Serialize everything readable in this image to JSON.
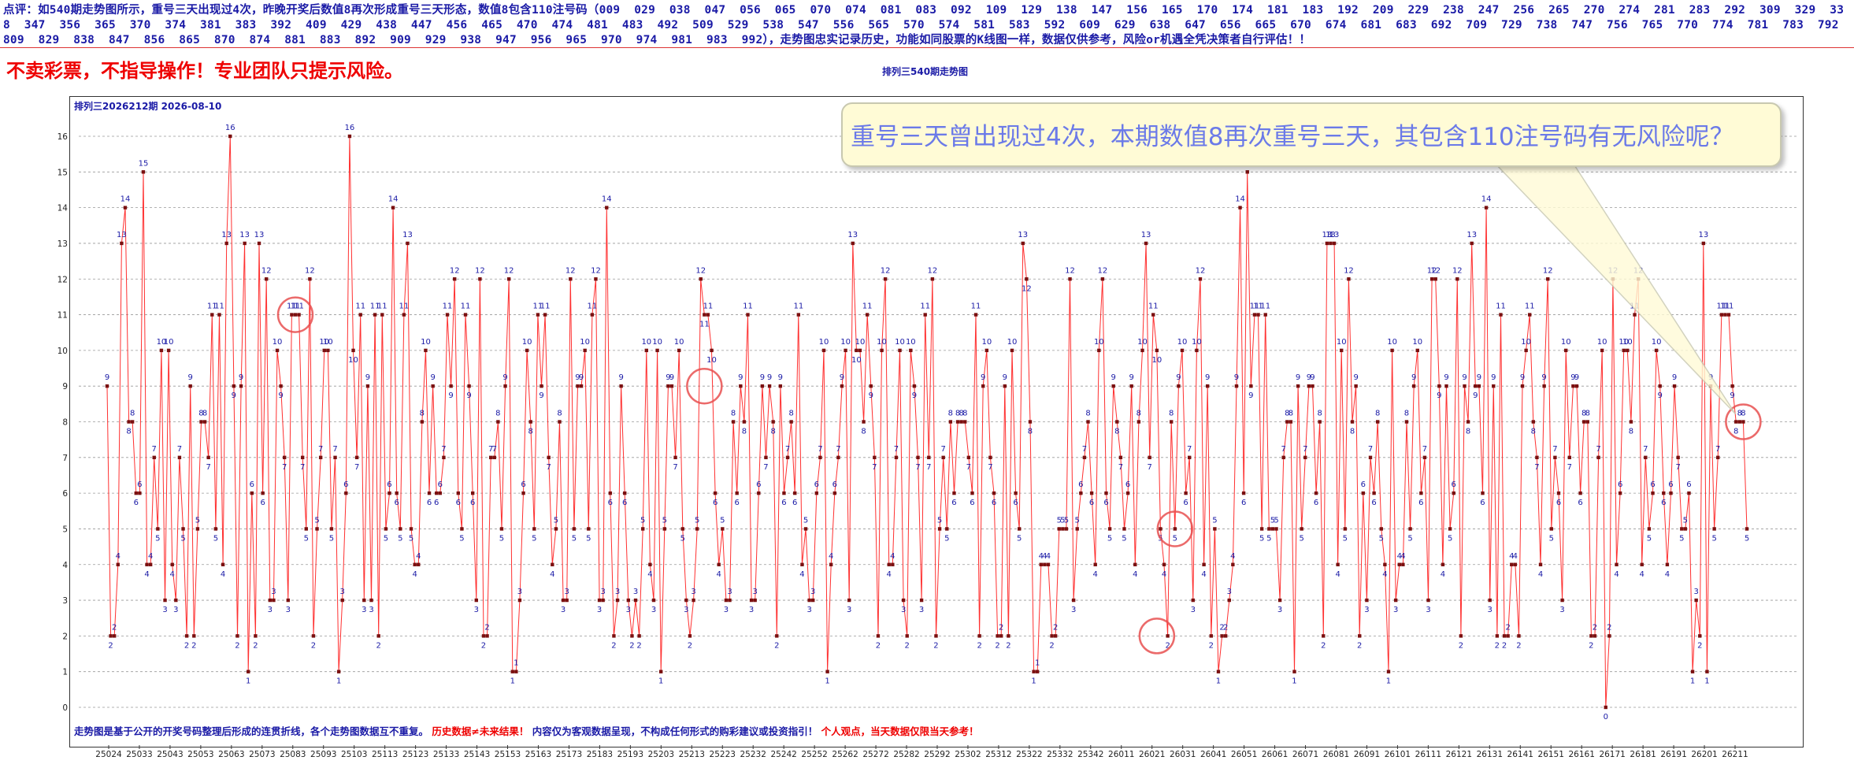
{
  "header": {
    "commentary": "点评：如540期走势图所示，重号三天出现过4次，昨晚开奖后数值8再次形成重号三天形态，数值8包含110注号码（009  029  038  047  056  065  070  074  081  083  092  109  129  138  147  156  165  170  174  181  183  192  209  229  238  247  256  265  270  274  281  283  292  309  329  338  347  356  365  370  374  381  383  392  409  429  438  447  456  465  470  474  481  483  492  509  529  538  547  556  565  570  574  581  583  592  609  629  638  647  656  665  670  674  681  683  692  709  729  738  747  756  765  770  774  781  783  792  809  829  838  847  856  865  870  874  881  883  892  909  929  938  947  956  965  970  974  981  983  992），走势图忠实记录历史，功能如同股票的K线图一样，数据仅供参考，风险or机遇全凭决策者自行评估！！"
  },
  "disclaimer": "不卖彩票，不指导操作！专业团队只提示风险。",
  "page_title": "排列三540期走势图",
  "period_label": "排列三2026212期  2026-08-10",
  "callout": "重号三天曾出现过4次，本期数值8再次重号三天，其包含110注号码有无风险呢？",
  "footer": {
    "part1": "走势图是基于公开的开奖号码整理后形成的连贯折线，各个走势图数据互不重复。",
    "part2": "历史数据≠未来结果！",
    "part3": "内容仅为客观数据呈现，不构成任何形式的购彩建议或投资指引！",
    "part4": "个人观点，当天数据仅限当天参考！"
  },
  "colors": {
    "line": "#ff3030",
    "marker": "#7a1010",
    "label": "#1a1aa6",
    "highlight": "#e85050",
    "grid": "#999999"
  },
  "chart_data": {
    "type": "line",
    "title": "排列三540期走势图",
    "ylim": [
      0,
      16
    ],
    "yticks": [
      0,
      1,
      2,
      3,
      4,
      5,
      6,
      7,
      8,
      9,
      10,
      11,
      12,
      13,
      14,
      15,
      16
    ],
    "grid": true,
    "xticks": [
      "25024",
      "25033",
      "25043",
      "25053",
      "25063",
      "25073",
      "25083",
      "25093",
      "25103",
      "25113",
      "25123",
      "25133",
      "25143",
      "25153",
      "25163",
      "25173",
      "25183",
      "25193",
      "25203",
      "25213",
      "25223",
      "25232",
      "25242",
      "25252",
      "25262",
      "25272",
      "25282",
      "25292",
      "25302",
      "25312",
      "25322",
      "25332",
      "25342",
      "26011",
      "26021",
      "26031",
      "26041",
      "26051",
      "26061",
      "26071",
      "26081",
      "26091",
      "26101",
      "26111",
      "26121",
      "26131",
      "26141",
      "26151",
      "26161",
      "26171",
      "26181",
      "26191",
      "26201",
      "26211"
    ],
    "values": [
      9,
      2,
      2,
      4,
      13,
      14,
      8,
      8,
      6,
      6,
      15,
      4,
      4,
      7,
      5,
      10,
      3,
      10,
      4,
      3,
      7,
      5,
      2,
      9,
      2,
      5,
      8,
      8,
      7,
      11,
      5,
      11,
      4,
      13,
      16,
      9,
      2,
      9,
      13,
      1,
      6,
      2,
      13,
      6,
      12,
      3,
      3,
      10,
      9,
      7,
      3,
      11,
      11,
      11,
      7,
      5,
      12,
      2,
      5,
      7,
      10,
      10,
      5,
      7,
      1,
      3,
      6,
      16,
      10,
      7,
      11,
      3,
      9,
      3,
      11,
      2,
      11,
      5,
      6,
      14,
      6,
      5,
      11,
      13,
      5,
      4,
      4,
      8,
      10,
      6,
      9,
      6,
      6,
      7,
      11,
      9,
      12,
      6,
      5,
      11,
      9,
      6,
      3,
      12,
      2,
      2,
      7,
      7,
      8,
      5,
      9,
      12,
      1,
      1,
      3,
      6,
      10,
      8,
      5,
      11,
      9,
      11,
      7,
      4,
      5,
      8,
      3,
      3,
      12,
      5,
      9,
      9,
      10,
      5,
      11,
      12,
      3,
      3,
      14,
      6,
      2,
      3,
      9,
      6,
      3,
      2,
      3,
      2,
      5,
      10,
      4,
      3,
      10,
      1,
      5,
      9,
      9,
      7,
      10,
      5,
      3,
      2,
      3,
      5,
      12,
      11,
      11,
      10,
      6,
      4,
      5,
      3,
      3,
      8,
      6,
      9,
      8,
      11,
      3,
      3,
      6,
      9,
      7,
      9,
      8,
      2,
      9,
      6,
      7,
      8,
      6,
      11,
      4,
      5,
      3,
      3,
      6,
      7,
      10,
      1,
      4,
      6,
      7,
      9,
      10,
      3,
      13,
      10,
      10,
      8,
      11,
      9,
      7,
      2,
      10,
      12,
      4,
      4,
      7,
      10,
      3,
      2,
      10,
      9,
      7,
      3,
      11,
      7,
      12,
      2,
      5,
      7,
      5,
      8,
      6,
      8,
      8,
      8,
      7,
      6,
      11,
      2,
      9,
      10,
      7,
      6,
      2,
      2,
      9,
      2,
      10,
      6,
      5,
      13,
      12,
      8,
      1,
      1,
      4,
      4,
      4,
      2,
      2,
      5,
      5,
      5,
      12,
      3,
      5,
      6,
      7,
      8,
      6,
      4,
      10,
      12,
      6,
      5,
      9,
      8,
      7,
      5,
      6,
      9,
      4,
      8,
      10,
      13,
      7,
      11,
      10,
      5,
      4,
      2,
      8,
      5,
      9,
      10,
      6,
      7,
      3,
      10,
      12,
      4,
      9,
      2,
      5,
      1,
      2,
      2,
      3,
      4,
      9,
      14,
      6,
      15,
      9,
      11,
      11,
      5,
      11,
      5,
      5,
      5,
      3,
      7,
      8,
      8,
      1,
      9,
      5,
      7,
      9,
      9,
      6,
      8,
      2,
      13,
      13,
      13,
      4,
      10,
      5,
      12,
      8,
      9,
      2,
      6,
      3,
      7,
      6,
      8,
      5,
      4,
      1,
      10,
      3,
      4,
      4,
      8,
      5,
      9,
      10,
      6,
      7,
      3,
      12,
      12,
      9,
      4,
      9,
      5,
      6,
      12,
      2,
      9,
      8,
      13,
      9,
      9,
      6,
      14,
      3,
      9,
      2,
      11,
      2,
      2,
      4,
      4,
      2,
      9,
      10,
      11,
      8,
      7,
      4,
      9,
      12,
      5,
      7,
      6,
      3,
      10,
      7,
      9,
      9,
      6,
      8,
      8,
      2,
      2,
      7,
      10,
      0,
      2,
      12,
      4,
      6,
      10,
      10,
      8,
      11,
      12,
      4,
      7,
      5,
      6,
      10,
      9,
      6,
      4,
      6,
      9,
      7,
      5,
      5,
      6,
      1,
      3,
      2,
      13,
      1,
      9,
      5,
      7,
      11,
      11,
      11,
      9,
      8,
      8,
      8,
      5
    ]
  }
}
